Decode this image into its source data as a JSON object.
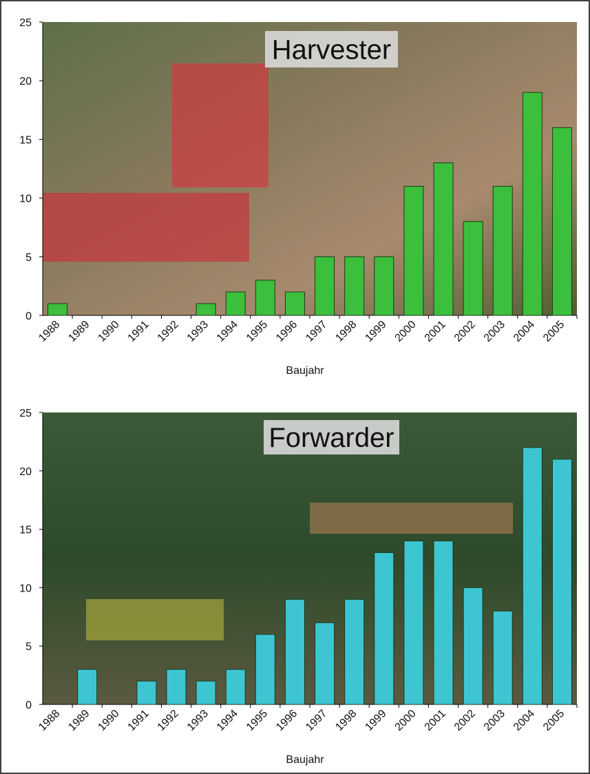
{
  "chart_data": [
    {
      "type": "bar",
      "title": "Harvester",
      "x_label": "Baujahr",
      "categories": [
        "1988",
        "1989",
        "1990",
        "1991",
        "1992",
        "1993",
        "1994",
        "1995",
        "1996",
        "1997",
        "1998",
        "1999",
        "2000",
        "2001",
        "2002",
        "2003",
        "2004",
        "2005"
      ],
      "values": [
        1,
        0,
        0,
        0,
        0,
        1,
        2,
        3,
        2,
        5,
        5,
        5,
        11,
        13,
        8,
        11,
        19,
        16
      ],
      "color": "#3cbf3c",
      "ylim": [
        0,
        25
      ],
      "yticks": [
        0,
        5,
        10,
        15,
        20,
        25
      ]
    },
    {
      "type": "bar",
      "title": "Forwarder",
      "x_label": "Baujahr",
      "categories": [
        "1988",
        "1989",
        "1990",
        "1991",
        "1992",
        "1993",
        "1994",
        "1995",
        "1996",
        "1997",
        "1998",
        "1999",
        "2000",
        "2001",
        "2002",
        "2003",
        "2004",
        "2005"
      ],
      "values": [
        0,
        3,
        0,
        2,
        3,
        2,
        3,
        6,
        9,
        7,
        9,
        13,
        14,
        14,
        10,
        8,
        22,
        21
      ],
      "color": "#3ec5d2",
      "ylim": [
        0,
        25
      ],
      "yticks": [
        0,
        5,
        10,
        15,
        20,
        25
      ]
    }
  ]
}
